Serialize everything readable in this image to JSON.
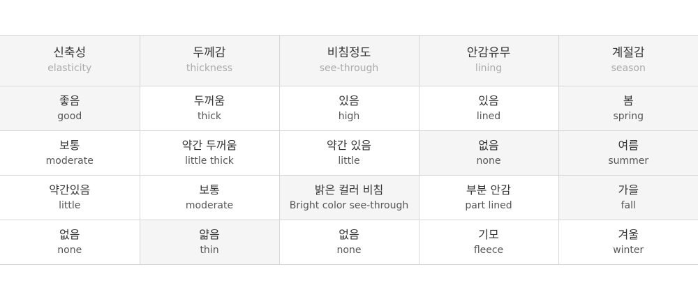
{
  "columns": [
    {
      "ko": "신축성",
      "en": "elasticity",
      "options": [
        {
          "ko": "좋음",
          "en": "good",
          "selected": true
        },
        {
          "ko": "보통",
          "en": "moderate",
          "selected": false
        },
        {
          "ko": "약간있음",
          "en": "little",
          "selected": false
        },
        {
          "ko": "없음",
          "en": "none",
          "selected": false
        }
      ]
    },
    {
      "ko": "두께감",
      "en": "thickness",
      "options": [
        {
          "ko": "두꺼움",
          "en": "thick",
          "selected": false
        },
        {
          "ko": "약간 두꺼움",
          "en": "little thick",
          "selected": false
        },
        {
          "ko": "보통",
          "en": "moderate",
          "selected": false
        },
        {
          "ko": "얇음",
          "en": "thin",
          "selected": true
        }
      ]
    },
    {
      "ko": "비침정도",
      "en": "see-through",
      "options": [
        {
          "ko": "있음",
          "en": "high",
          "selected": false
        },
        {
          "ko": "약간 있음",
          "en": "little",
          "selected": false
        },
        {
          "ko": "밝은 컬러 비침",
          "en": "Bright color see-through",
          "selected": true
        },
        {
          "ko": "없음",
          "en": "none",
          "selected": false
        }
      ]
    },
    {
      "ko": "안감유무",
      "en": "lining",
      "options": [
        {
          "ko": "있음",
          "en": "lined",
          "selected": false
        },
        {
          "ko": "없음",
          "en": "none",
          "selected": true
        },
        {
          "ko": "부분 안감",
          "en": "part lined",
          "selected": false
        },
        {
          "ko": "기모",
          "en": "fleece",
          "selected": false
        }
      ]
    },
    {
      "ko": "계절감",
      "en": "season",
      "options": [
        {
          "ko": "봄",
          "en": "spring",
          "selected": true
        },
        {
          "ko": "여름",
          "en": "summer",
          "selected": true
        },
        {
          "ko": "가을",
          "en": "fall",
          "selected": true
        },
        {
          "ko": "겨울",
          "en": "winter",
          "selected": false
        }
      ]
    }
  ],
  "colors": {
    "highlight": "#f5f5f5",
    "border": "#d6d6d6",
    "header_bg": "#f5f5f5"
  }
}
